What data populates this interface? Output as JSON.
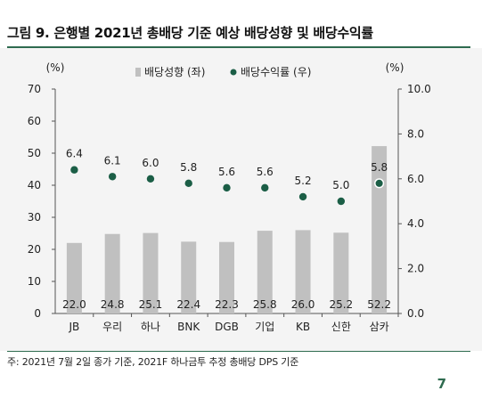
{
  "title": "그림 9. 은행별 2021년 총배당 기준 예상 배당성향 및 배당수익률",
  "source": "주: 2021년 7월 2일 종가 기준, 2021F 하나금투 추정 총배당 DPS 기준",
  "page_number": "7",
  "colors": {
    "bar": "#c0c0c0",
    "dot": "#1b5e46",
    "accent": "#2e6b4f",
    "background": "#f4f4f4"
  },
  "chart_data": {
    "type": "bar",
    "categories": [
      "JB",
      "우리",
      "하나",
      "BNK",
      "DGB",
      "기업",
      "KB",
      "신한",
      "삼카"
    ],
    "series": [
      {
        "name": "배당성향 (좌)",
        "type": "bar",
        "axis": "left",
        "values": [
          22.0,
          24.8,
          25.1,
          22.4,
          22.3,
          25.8,
          26.0,
          25.2,
          52.2
        ],
        "labels": [
          "22.0",
          "24.8",
          "25.1",
          "22.4",
          "22.3",
          "25.8",
          "26.0",
          "25.2",
          "52.2"
        ]
      },
      {
        "name": "배당수익률 (우)",
        "type": "scatter",
        "axis": "right",
        "values": [
          6.4,
          6.1,
          6.0,
          5.8,
          5.6,
          5.6,
          5.2,
          5.0,
          5.8
        ],
        "labels": [
          "6.4",
          "6.1",
          "6.0",
          "5.8",
          "5.6",
          "5.6",
          "5.2",
          "5.0",
          "5.8"
        ]
      }
    ],
    "left_axis": {
      "unit_label": "(%)",
      "range": [
        0,
        70
      ],
      "ticks": [
        0,
        10,
        20,
        30,
        40,
        50,
        60,
        70
      ],
      "tick_labels": [
        "0",
        "10",
        "20",
        "30",
        "40",
        "50",
        "60",
        "70"
      ]
    },
    "right_axis": {
      "unit_label": "(%)",
      "range": [
        0,
        10
      ],
      "ticks": [
        0,
        2,
        4,
        6,
        8,
        10
      ],
      "tick_labels": [
        "0.0",
        "2.0",
        "4.0",
        "6.0",
        "8.0",
        "10.0"
      ]
    },
    "grid": false,
    "legend_position": "top-center"
  }
}
